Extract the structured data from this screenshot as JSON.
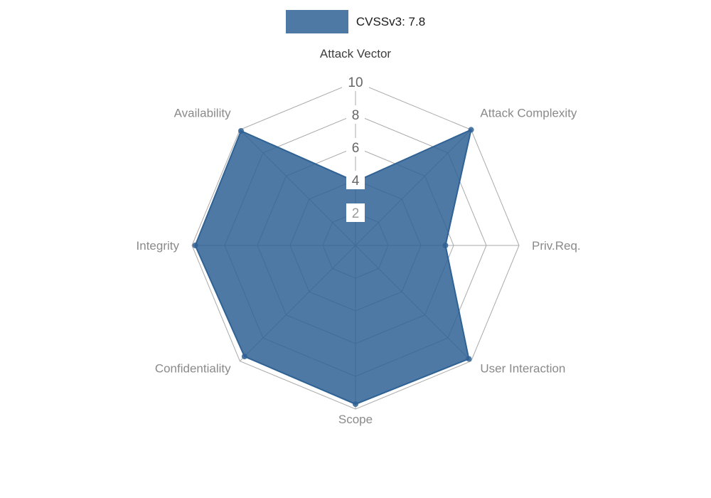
{
  "legend": {
    "label": "CVSSv3: 7.8"
  },
  "chart_data": {
    "type": "radar",
    "title": "CVSSv3: 7.8",
    "categories": [
      "Attack Vector",
      "Attack Complexity",
      "Priv.Req.",
      "User Interaction",
      "Scope",
      "Confidentiality",
      "Integrity",
      "Availability"
    ],
    "series": [
      {
        "name": "CVSSv3: 7.8",
        "values": [
          3.9,
          10,
          5.5,
          9.8,
          9.7,
          9.6,
          9.8,
          9.9
        ]
      }
    ],
    "ticks": [
      2,
      4,
      6,
      8,
      10
    ],
    "max": 10,
    "min": 0,
    "grid": true,
    "grid_shape": "polygon",
    "legend_position": "top",
    "center": [
      500,
      345
    ],
    "radius_px": 230
  },
  "colors": {
    "series_fill": "rgba(47,98,148,0.85)",
    "series_stroke": "#2f6294",
    "grid": "#aaaaaa",
    "tick_text": "#666666",
    "tick_text_light": "#9a9a9a",
    "tick_backdrop": "#ffffff",
    "category_label": "#8a8a8a",
    "category_label_primary": "#3d3d3d",
    "legend_text": "#1a1a1a"
  }
}
